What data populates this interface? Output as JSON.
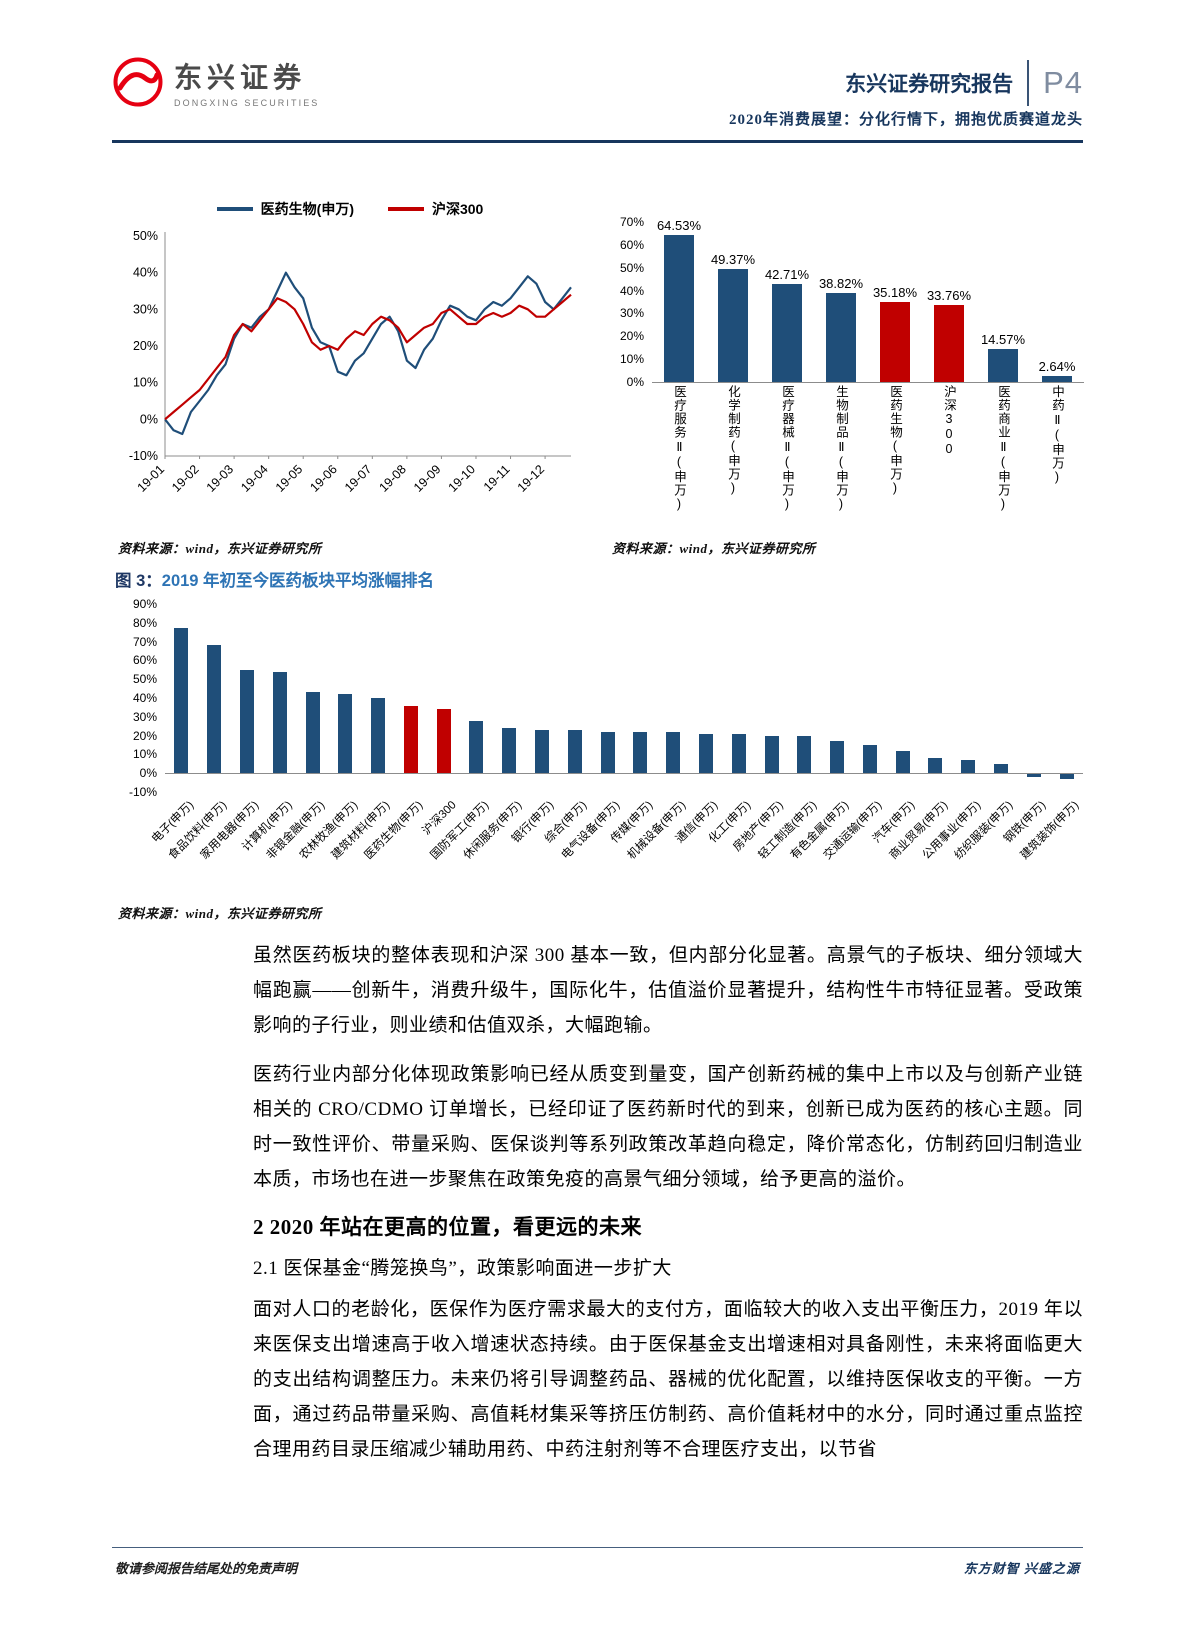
{
  "header": {
    "logo_title": "东兴证券",
    "logo_subtitle": "DONGXING SECURITIES",
    "report_series": "东兴证券研究报告",
    "page_number": "P4",
    "report_subtitle": "2020年消费展望：分化行情下，拥抱优质赛道龙头"
  },
  "figure3": {
    "label": "图 3：",
    "title": "2019 年初至今医药板块平均涨幅排名"
  },
  "chart_data": [
    {
      "type": "line",
      "x_labels": [
        "19-01",
        "19-02",
        "19-03",
        "19-04",
        "19-05",
        "19-06",
        "19-07",
        "19-08",
        "19-09",
        "19-10",
        "19-11",
        "19-12"
      ],
      "ylim": [
        -10,
        50
      ],
      "ytick_step": 10,
      "grid": false,
      "legend_position": "top",
      "series": [
        {
          "name": "医药生物(申万)",
          "color": "#1F4E79",
          "values": [
            0,
            -3,
            -4,
            2,
            5,
            8,
            12,
            15,
            22,
            26,
            25,
            28,
            30,
            35,
            40,
            36,
            33,
            25,
            21,
            20,
            13,
            12,
            16,
            18,
            22,
            26,
            28,
            24,
            16,
            14,
            19,
            22,
            27,
            31,
            30,
            28,
            27,
            30,
            32,
            31,
            33,
            36,
            39,
            37,
            32,
            30,
            33,
            36
          ]
        },
        {
          "name": "沪深300",
          "color": "#C00000",
          "values": [
            0,
            2,
            4,
            6,
            8,
            11,
            14,
            17,
            23,
            26,
            24,
            27,
            30,
            33,
            32,
            30,
            26,
            21,
            19,
            20,
            19,
            22,
            24,
            23,
            26,
            28,
            27,
            25,
            21,
            23,
            25,
            26,
            29,
            30,
            28,
            26,
            26,
            28,
            29,
            28,
            29,
            31,
            30,
            28,
            28,
            30,
            32,
            34
          ]
        }
      ],
      "source": "资料来源：wind，东兴证券研究所"
    },
    {
      "type": "bar",
      "categories": [
        "医疗服务Ⅱ(申万)",
        "化学制药(申万)",
        "医疗器械Ⅱ(申万)",
        "生物制品Ⅱ(申万)",
        "医药生物(申万)",
        "沪深300",
        "医药商业Ⅱ(申万)",
        "中药Ⅱ(申万)"
      ],
      "values": [
        64.53,
        49.37,
        42.71,
        38.82,
        35.18,
        33.76,
        14.57,
        2.64
      ],
      "value_labels": [
        "64.53%",
        "49.37%",
        "42.71%",
        "38.82%",
        "35.18%",
        "33.76%",
        "14.57%",
        "2.64%"
      ],
      "ylim": [
        0,
        70
      ],
      "ytick_step": 10,
      "bar_color": "#1F4E79",
      "highlight_color": "#C00000",
      "highlight_indices": [
        4,
        5
      ],
      "source": "资料来源：wind，东兴证券研究所"
    },
    {
      "type": "bar",
      "title": "2019 年初至今医药板块平均涨幅排名",
      "categories": [
        "电子(申万)",
        "食品饮料(申万)",
        "家用电器(申万)",
        "计算机(申万)",
        "非银金融(申万)",
        "农林牧渔(申万)",
        "建筑材料(申万)",
        "医药生物(申万)",
        "沪深300",
        "国防军工(申万)",
        "休闲服务(申万)",
        "银行(申万)",
        "综合(申万)",
        "电气设备(申万)",
        "传媒(申万)",
        "机械设备(申万)",
        "通信(申万)",
        "化工(申万)",
        "房地产(申万)",
        "轻工制造(申万)",
        "有色金属(申万)",
        "交通运输(申万)",
        "汽车(申万)",
        "商业贸易(申万)",
        "公用事业(申万)",
        "纺织服装(申万)",
        "钢铁(申万)",
        "建筑装饰(申万)"
      ],
      "values": [
        77,
        68,
        55,
        54,
        43,
        42,
        40,
        36,
        34,
        28,
        24,
        23,
        23,
        22,
        22,
        22,
        21,
        21,
        20,
        20,
        17,
        15,
        12,
        8,
        7,
        5,
        -2,
        -3
      ],
      "ylim": [
        -10,
        90
      ],
      "ytick_step": 10,
      "bar_color": "#1F4E79",
      "highlight_color": "#C00000",
      "highlight_indices": [
        7,
        8
      ],
      "source": "资料来源：wind，东兴证券研究所"
    }
  ],
  "body": {
    "p1": "虽然医药板块的整体表现和沪深 300 基本一致，但内部分化显著。高景气的子板块、细分领域大幅跑赢——创新牛，消费升级牛，国际化牛，估值溢价显著提升，结构性牛市特征显著。受政策影响的子行业，则业绩和估值双杀，大幅跑输。",
    "p2": "医药行业内部分化体现政策影响已经从质变到量变，国产创新药械的集中上市以及与创新产业链相关的 CRO/CDMO 订单增长，已经印证了医药新时代的到来，创新已成为医药的核心主题。同时一致性评价、带量采购、医保谈判等系列政策改革趋向稳定，降价常态化，仿制药回归制造业本质，市场也在进一步聚焦在政策免疫的高景气细分领域，给予更高的溢价。",
    "h2": "2 2020 年站在更高的位置，看更远的未来",
    "h21": "2.1 医保基金“腾笼换鸟”，政策影响面进一步扩大",
    "p3": "面对人口的老龄化，医保作为医疗需求最大的支付方，面临较大的收入支出平衡压力，2019 年以来医保支出增速高于收入增速状态持续。由于医保基金支出增速相对具备刚性，未来将面临更大的支出结构调整压力。未来仍将引导调整药品、器械的优化配置，以维持医保收支的平衡。一方面，通过药品带量采购、高值耗材集采等挤压仿制药、高价值耗材中的水分，同时通过重点监控合理用药目录压缩减少辅助用药、中药注射剂等不合理医疗支出，以节省"
  },
  "footer": {
    "left": "敬请参阅报告结尾处的免责声明",
    "right": "东方财智 兴盛之源"
  }
}
